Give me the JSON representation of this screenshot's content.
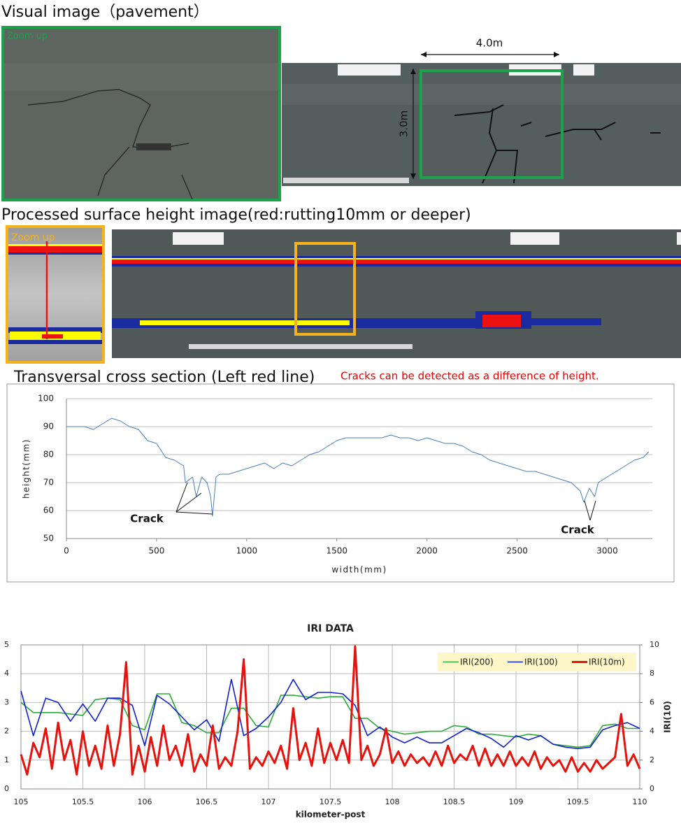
{
  "sections": {
    "visual": {
      "heading": "Visual image（pavement）",
      "zoom_label": "Zoom up",
      "width_label": "4.0m",
      "height_label": "3.0m"
    },
    "processed": {
      "heading": "Processed surface height image(red:rutting10mm or deeper)",
      "zoom_label": "Zoom up"
    },
    "cross_section": {
      "heading": "Transversal cross section (Left red line)",
      "note": "Cracks can be detected as a difference of height."
    }
  },
  "chart_data": [
    {
      "type": "line",
      "x": [
        0,
        50,
        100,
        150,
        200,
        250,
        300,
        350,
        400,
        450,
        500,
        550,
        600,
        650,
        660,
        700,
        720,
        750,
        780,
        800,
        810,
        830,
        850,
        900,
        950,
        1000,
        1050,
        1100,
        1150,
        1200,
        1250,
        1300,
        1350,
        1400,
        1450,
        1500,
        1550,
        1600,
        1650,
        1700,
        1750,
        1800,
        1850,
        1900,
        1950,
        2000,
        2050,
        2100,
        2150,
        2200,
        2250,
        2300,
        2350,
        2400,
        2450,
        2500,
        2550,
        2600,
        2650,
        2700,
        2750,
        2800,
        2850,
        2870,
        2900,
        2930,
        2950,
        3000,
        3050,
        3100,
        3150,
        3200,
        3230
      ],
      "values": [
        90,
        90,
        90,
        89,
        91,
        93,
        92,
        90,
        89,
        85,
        84,
        79,
        78,
        76,
        70,
        72,
        65,
        72,
        70,
        65,
        58,
        72,
        73,
        73,
        74,
        75,
        76,
        77,
        75,
        77,
        76,
        78,
        80,
        81,
        83,
        85,
        86,
        86,
        86,
        86,
        86,
        87,
        86,
        86,
        85,
        86,
        85,
        84,
        84,
        83,
        81,
        80,
        78,
        77,
        76,
        75,
        74,
        74,
        73,
        72,
        71,
        70,
        67,
        63,
        68,
        65,
        70,
        72,
        74,
        76,
        78,
        79,
        81
      ],
      "color": "#4a7ebb",
      "xlim": [
        0,
        3250
      ],
      "xticks": [
        0,
        500,
        1000,
        1500,
        2000,
        2500,
        3000
      ],
      "ylim": [
        50,
        100
      ],
      "yticks": [
        50,
        60,
        70,
        80,
        90,
        100
      ],
      "xlabel": "width(mm)",
      "ylabel": "height(mm)",
      "grid": "y",
      "annotations": [
        "Crack",
        "Crack"
      ]
    },
    {
      "type": "line",
      "title": "IRI DATA",
      "x": [
        105,
        105.1,
        105.2,
        105.3,
        105.4,
        105.5,
        105.6,
        105.7,
        105.8,
        105.9,
        106,
        106.1,
        106.2,
        106.3,
        106.4,
        106.5,
        106.6,
        106.7,
        106.8,
        106.9,
        107,
        107.1,
        107.2,
        107.3,
        107.4,
        107.5,
        107.6,
        107.7,
        107.8,
        107.9,
        108,
        108.1,
        108.2,
        108.3,
        108.4,
        108.5,
        108.6,
        108.7,
        108.8,
        108.9,
        109,
        109.1,
        109.2,
        109.3,
        109.4,
        109.5,
        109.6,
        109.7,
        109.8,
        109.9,
        110
      ],
      "series": [
        {
          "name": "IRI(200)",
          "color": "#2eaa3c",
          "values": [
            3.0,
            2.65,
            2.65,
            2.65,
            2.6,
            2.55,
            3.1,
            3.15,
            3.1,
            2.2,
            2.05,
            3.3,
            3.3,
            2.3,
            2.2,
            1.95,
            1.95,
            2.8,
            2.8,
            2.2,
            2.15,
            3.25,
            3.25,
            3.2,
            3.15,
            3.2,
            3.2,
            2.45,
            2.45,
            2.1,
            2.0,
            1.9,
            1.95,
            2.0,
            2.0,
            2.2,
            2.15,
            1.9,
            1.9,
            1.85,
            1.8,
            1.9,
            1.85,
            1.55,
            1.5,
            1.45,
            1.5,
            2.2,
            2.25,
            2.1,
            2.1
          ]
        },
        {
          "name": "IRI(100)",
          "color": "#1020d0",
          "values": [
            3.4,
            1.85,
            3.15,
            3.0,
            2.35,
            2.95,
            2.35,
            3.15,
            3.15,
            2.9,
            1.5,
            3.25,
            2.95,
            2.5,
            2.05,
            2.4,
            1.65,
            3.8,
            1.85,
            2.1,
            2.5,
            3.0,
            3.8,
            3.1,
            3.35,
            3.35,
            3.3,
            2.9,
            1.85,
            2.15,
            1.8,
            1.6,
            1.8,
            1.6,
            1.6,
            1.85,
            2.1,
            1.95,
            1.75,
            1.45,
            1.85,
            1.7,
            1.85,
            1.55,
            1.45,
            1.4,
            1.45,
            2.05,
            2.2,
            2.3,
            2.1
          ]
        },
        {
          "name": "IRI(10m)",
          "color": "#e8120c",
          "axis": "y2",
          "x": [
            105,
            105.05,
            105.1,
            105.15,
            105.2,
            105.25,
            105.3,
            105.35,
            105.4,
            105.45,
            105.5,
            105.55,
            105.6,
            105.65,
            105.7,
            105.75,
            105.8,
            105.85,
            105.9,
            105.95,
            106,
            106.05,
            106.1,
            106.15,
            106.2,
            106.25,
            106.3,
            106.35,
            106.4,
            106.45,
            106.5,
            106.55,
            106.6,
            106.65,
            106.7,
            106.75,
            106.8,
            106.85,
            106.9,
            106.95,
            107,
            107.05,
            107.1,
            107.15,
            107.2,
            107.25,
            107.3,
            107.35,
            107.4,
            107.45,
            107.5,
            107.55,
            107.6,
            107.65,
            107.7,
            107.75,
            107.8,
            107.85,
            107.9,
            107.95,
            108,
            108.05,
            108.1,
            108.15,
            108.2,
            108.25,
            108.3,
            108.35,
            108.4,
            108.45,
            108.5,
            108.55,
            108.6,
            108.65,
            108.7,
            108.75,
            108.8,
            108.85,
            108.9,
            108.95,
            109,
            109.05,
            109.1,
            109.15,
            109.2,
            109.25,
            109.3,
            109.35,
            109.4,
            109.45,
            109.5,
            109.55,
            109.6,
            109.65,
            109.7,
            109.75,
            109.8,
            109.85,
            109.9,
            109.95,
            110
          ],
          "values": [
            2.4,
            1.0,
            3.2,
            2.2,
            4.2,
            1.4,
            4.6,
            2.0,
            3.4,
            1.0,
            4.0,
            1.6,
            3.0,
            1.4,
            4.4,
            1.6,
            3.8,
            8.8,
            1.0,
            3.0,
            1.2,
            3.6,
            1.6,
            4.4,
            2.0,
            3.0,
            1.6,
            3.8,
            1.2,
            2.4,
            1.6,
            4.4,
            1.4,
            2.2,
            1.6,
            4.0,
            9.0,
            1.4,
            2.2,
            1.6,
            2.6,
            1.8,
            3.0,
            1.4,
            5.6,
            2.0,
            3.2,
            1.6,
            4.2,
            1.8,
            3.2,
            2.0,
            3.4,
            1.8,
            9.9,
            2.0,
            3.0,
            1.6,
            2.4,
            4.2,
            1.8,
            2.6,
            1.6,
            2.4,
            1.8,
            2.2,
            1.6,
            2.6,
            1.6,
            3.0,
            1.8,
            2.4,
            2.0,
            3.0,
            1.6,
            2.8,
            1.6,
            2.4,
            1.6,
            2.6,
            1.6,
            2.2,
            1.6,
            2.6,
            1.4,
            2.2,
            1.6,
            2.0,
            1.2,
            2.2,
            1.2,
            1.8,
            1.2,
            2.0,
            1.4,
            1.8,
            2.2,
            5.2,
            1.6,
            2.4,
            1.4
          ]
        }
      ],
      "xlim": [
        105,
        110
      ],
      "xticks": [
        105,
        105.5,
        106,
        106.5,
        107,
        107.5,
        108,
        108.5,
        109,
        109.5,
        110
      ],
      "ylim": [
        0,
        5
      ],
      "yticks": [
        0,
        1,
        2,
        3,
        4,
        5
      ],
      "y2lim": [
        0,
        10
      ],
      "y2ticks": [
        0,
        2,
        4,
        6,
        8,
        10
      ],
      "xlabel": "kilometer-post",
      "y2label": "IRI(10)",
      "grid": "both",
      "legend": "upper right"
    }
  ]
}
